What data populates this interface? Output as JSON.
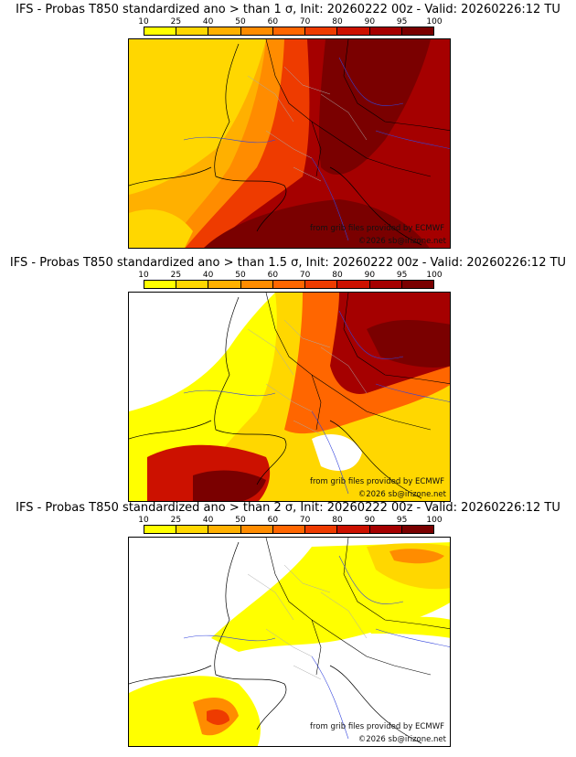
{
  "colors": {
    "bins": [
      "#ffff00",
      "#ffd700",
      "#ffb000",
      "#ff8c00",
      "#ff6600",
      "#ee3b00",
      "#cc1100",
      "#a50000",
      "#7a0000"
    ],
    "borders": "#000000",
    "regions": "#aaaaaa",
    "rivers": "#3344dd"
  },
  "colorbar": {
    "ticks": [
      "10",
      "25",
      "40",
      "50",
      "60",
      "70",
      "80",
      "90",
      "95",
      "100"
    ]
  },
  "panels": [
    {
      "title": "IFS - Probas T850  standardized ano > than 1 σ, Init: 20260222 00z - Valid: 20260226:12 TU",
      "threshold": "1 σ",
      "credit": "from grib files provided by ECMWF",
      "copyright": "©2026 sb@irizone.net"
    },
    {
      "title": "IFS - Probas T850  standardized ano > than 1.5 σ, Init: 20260222 00z - Valid: 20260226:12 TU",
      "threshold": "1.5 σ",
      "credit": "from grib files provided by ECMWF",
      "copyright": "©2026 sb@irizone.net"
    },
    {
      "title": "IFS - Probas T850  standardized ano > than 2 σ, Init: 20260222 00z - Valid: 20260226:12 TU",
      "threshold": "2 σ",
      "credit": "from grib files provided by ECMWF",
      "copyright": "©2026 sb@irizone.net"
    }
  ]
}
